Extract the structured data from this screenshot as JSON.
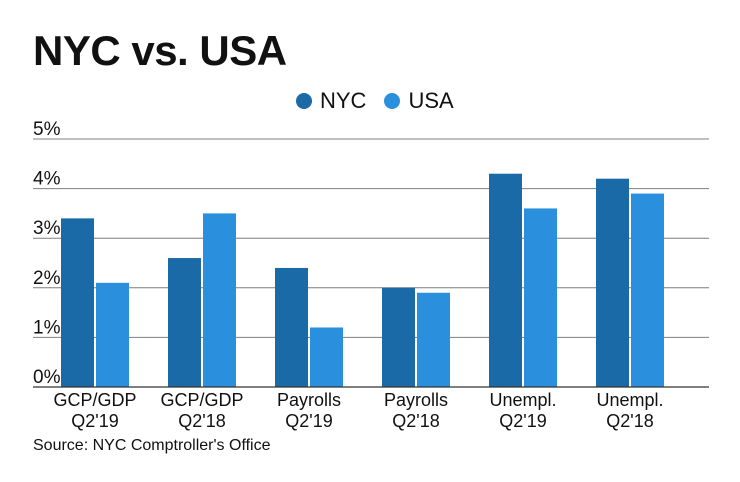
{
  "title": "NYC vs. USA",
  "source": "Source: NYC Comptroller's Office",
  "colors": {
    "nyc": "#1b6aa8",
    "usa": "#2a8fdd",
    "grid": "#7f7f7f"
  },
  "chart_data": {
    "type": "bar",
    "title": "NYC vs. USA",
    "categories": [
      [
        "GCP/GDP",
        "Q2'19"
      ],
      [
        "GCP/GDP",
        "Q2'18"
      ],
      [
        "Payrolls",
        "Q2'19"
      ],
      [
        "Payrolls",
        "Q2'18"
      ],
      [
        "Unempl.",
        "Q2'19"
      ],
      [
        "Unempl.",
        "Q2'18"
      ]
    ],
    "series": [
      {
        "name": "NYC",
        "values": [
          3.4,
          2.6,
          2.4,
          2.0,
          4.3,
          4.2
        ]
      },
      {
        "name": "USA",
        "values": [
          2.1,
          3.5,
          1.2,
          1.9,
          3.6,
          3.9
        ]
      }
    ],
    "yticks": [
      "0%",
      "1%",
      "2%",
      "3%",
      "4%",
      "5%"
    ],
    "ylim": [
      0,
      5
    ],
    "xlabel": "",
    "ylabel": "",
    "grid": true,
    "legend": "top-center"
  }
}
